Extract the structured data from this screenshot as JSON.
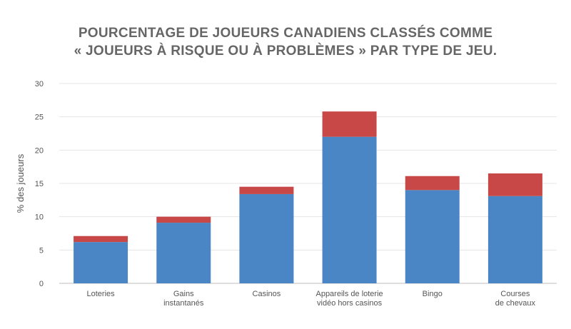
{
  "chart_data": {
    "type": "bar",
    "stacked": true,
    "title_lines": [
      "POURCENTAGE DE JOUEURS CANADIENS CLASSÉS COMME",
      "« JOUEURS À RISQUE OU À PROBLÈMES » PAR TYPE DE JEU."
    ],
    "ylabel": "% des joueurs",
    "xlabel": "",
    "ylim": [
      0,
      30
    ],
    "yticks": [
      0,
      5,
      10,
      15,
      20,
      25,
      30
    ],
    "grid": true,
    "legend": "none",
    "categories": [
      [
        "Loteries"
      ],
      [
        "Gains",
        "instantanés"
      ],
      [
        "Casinos"
      ],
      [
        "Appareils de loterie",
        "vidéo hors casinos"
      ],
      [
        "Bingo"
      ],
      [
        "Courses",
        "de chevaux"
      ]
    ],
    "series": [
      {
        "color": "#4a86c5",
        "values": [
          6.2,
          9.1,
          13.4,
          22.0,
          14.0,
          13.1
        ]
      },
      {
        "color": "#c84747",
        "values": [
          0.9,
          0.9,
          1.1,
          3.8,
          2.1,
          3.4
        ]
      }
    ]
  }
}
